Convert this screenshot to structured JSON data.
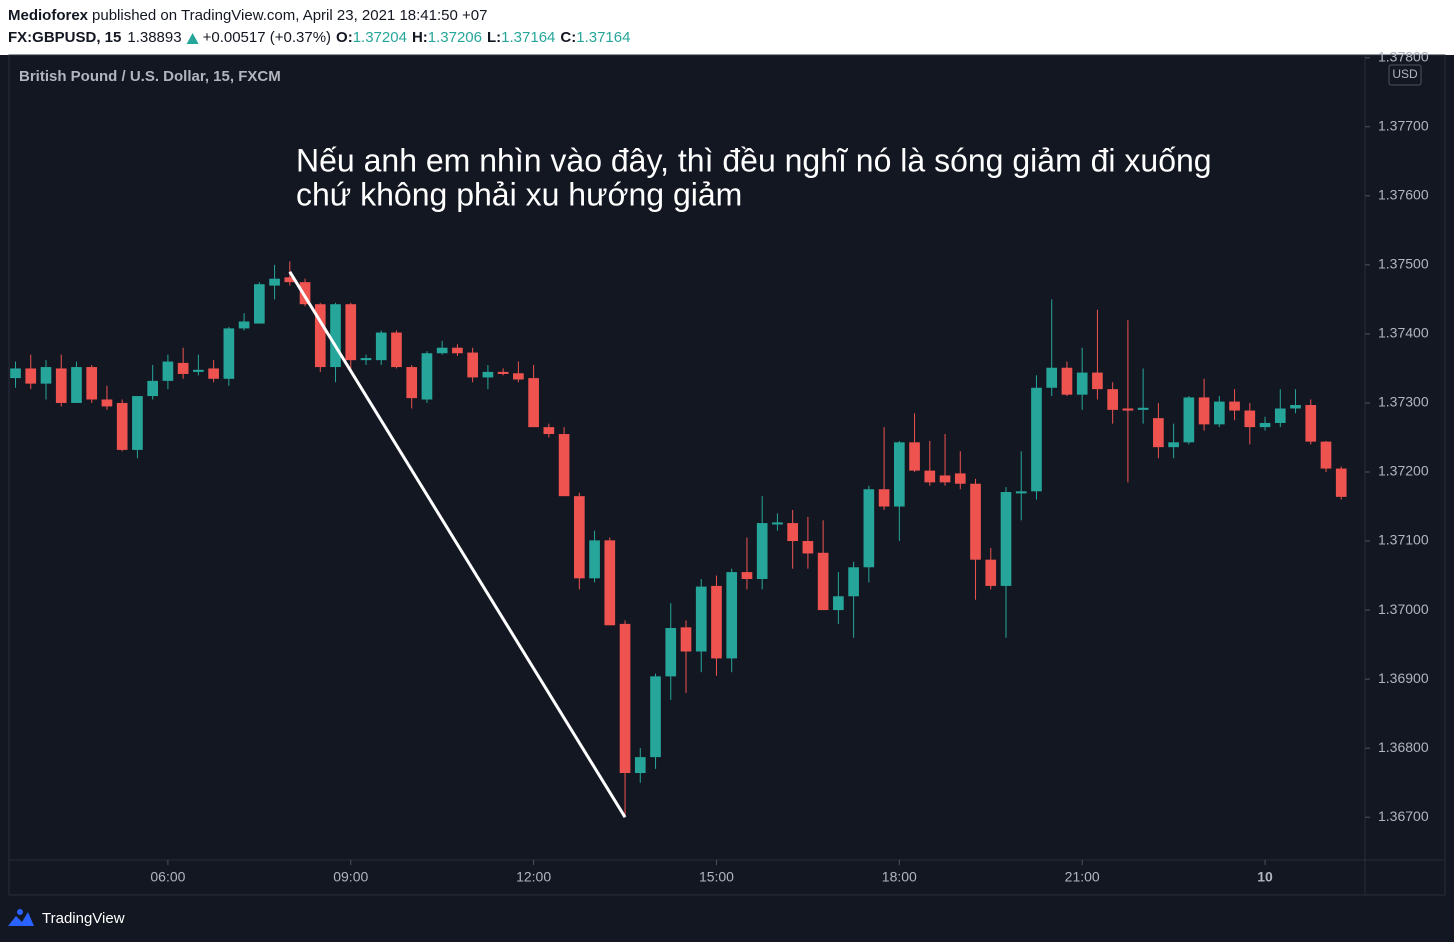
{
  "chart_data": {
    "type": "candlestick",
    "header": {
      "author": "Medioforex",
      "published": "published on TradingView.com, April 23, 2021 18:41:50 +07",
      "symbol": "FX:GBPUSD, 15",
      "last": "1.38893",
      "change": "+0.00517 (+0.37%)",
      "ohlc": [
        {
          "label": "O:",
          "value": "1.37204"
        },
        {
          "label": "H:",
          "value": "1.37206"
        },
        {
          "label": "L:",
          "value": "1.37164"
        },
        {
          "label": "C:",
          "value": "1.37164"
        }
      ]
    },
    "title": "British Pound / U.S. Dollar, 15, FXCM",
    "currency": "USD",
    "annotation": [
      "Nếu anh em nhìn vào đây, thì đều nghĩ nó là sóng giảm đi xuống",
      "chứ không phải xu hướng giảm"
    ],
    "brand": "TradingView",
    "up_color": "#26a69a",
    "down_color": "#ef5350",
    "x": [
      3.5,
      3.75,
      4,
      4.25,
      4.5,
      4.75,
      5,
      5.25,
      5.5,
      5.75,
      6,
      6.25,
      6.5,
      6.75,
      7,
      7.25,
      7.5,
      7.75,
      8,
      8.25,
      8.5,
      8.75,
      9,
      9.25,
      9.5,
      9.75,
      10,
      10.25,
      10.5,
      10.75,
      11,
      11.25,
      11.5,
      11.75,
      12,
      12.25,
      12.5,
      12.75,
      13,
      13.25,
      13.5,
      13.75,
      14,
      14.25,
      14.5,
      14.75,
      15,
      15.25,
      15.5,
      15.75,
      16,
      16.25,
      16.5,
      16.75,
      17,
      17.25,
      17.5,
      17.75,
      18,
      18.25,
      18.5,
      18.75,
      19,
      19.25,
      19.5,
      19.75,
      20,
      20.25,
      20.5,
      20.75,
      21,
      21.25,
      21.5,
      21.75,
      22,
      22.25,
      22.5,
      22.75,
      23,
      23.25,
      23.5,
      23.75,
      24,
      24.25,
      24.5,
      24.75,
      25,
      25.25
    ],
    "open": [
      1.37336,
      1.3735,
      1.37328,
      1.3735,
      1.373,
      1.37352,
      1.37305,
      1.373,
      1.37232,
      1.3731,
      1.37332,
      1.37358,
      1.37345,
      1.3735,
      1.37335,
      1.37408,
      1.37415,
      1.3747,
      1.37482,
      1.37475,
      1.37443,
      1.37352,
      1.37443,
      1.37362,
      1.37362,
      1.37402,
      1.37352,
      1.37305,
      1.37372,
      1.3738,
      1.37373,
      1.37337,
      1.37345,
      1.37343,
      1.37336,
      1.37265,
      1.37255,
      1.37165,
      1.37046,
      1.37101,
      1.3698,
      1.36764,
      1.36787,
      1.36904,
      1.36975,
      1.3694,
      1.37035,
      1.3693,
      1.37055,
      1.37045,
      1.37124,
      1.37126,
      1.371,
      1.37083,
      1.37,
      1.3702,
      1.37062,
      1.37175,
      1.3715,
      1.37243,
      1.37202,
      1.37195,
      1.37198,
      1.37183,
      1.37073,
      1.37035,
      1.37169,
      1.37172,
      1.37322,
      1.37351,
      1.37312,
      1.37344,
      1.3732,
      1.37292,
      1.3729,
      1.37278,
      1.37236,
      1.37243,
      1.37308,
      1.37269,
      1.37302,
      1.37289,
      1.37265,
      1.37271,
      1.37292,
      1.37297,
      1.37244,
      1.37205
    ],
    "high": [
      1.3736,
      1.3737,
      1.37362,
      1.3737,
      1.3736,
      1.37355,
      1.37325,
      1.37305,
      1.3731,
      1.37355,
      1.3737,
      1.3738,
      1.3737,
      1.37362,
      1.3741,
      1.3743,
      1.37475,
      1.375,
      1.37505,
      1.3748,
      1.37445,
      1.37445,
      1.37445,
      1.3737,
      1.37405,
      1.37405,
      1.37355,
      1.37375,
      1.3739,
      1.37385,
      1.3738,
      1.37355,
      1.3735,
      1.3736,
      1.37355,
      1.3727,
      1.37265,
      1.3717,
      1.37115,
      1.37105,
      1.36985,
      1.368,
      1.36908,
      1.3701,
      1.36985,
      1.37045,
      1.3705,
      1.3706,
      1.37105,
      1.37165,
      1.3714,
      1.37145,
      1.37135,
      1.3713,
      1.37055,
      1.3707,
      1.3718,
      1.37265,
      1.37245,
      1.37285,
      1.37245,
      1.37255,
      1.3723,
      1.3719,
      1.3709,
      1.37178,
      1.3723,
      1.3734,
      1.3745,
      1.3736,
      1.3738,
      1.37435,
      1.3733,
      1.3742,
      1.3735,
      1.373,
      1.3727,
      1.3731,
      1.37335,
      1.3731,
      1.3732,
      1.373,
      1.3728,
      1.3732,
      1.3732,
      1.37305,
      1.37245,
      1.37208
    ],
    "low": [
      1.37322,
      1.3732,
      1.37305,
      1.37295,
      1.373,
      1.373,
      1.3729,
      1.3723,
      1.3722,
      1.37305,
      1.3732,
      1.37335,
      1.3734,
      1.3733,
      1.37325,
      1.37405,
      1.37415,
      1.3745,
      1.3747,
      1.3744,
      1.37345,
      1.3733,
      1.37345,
      1.37355,
      1.37355,
      1.3735,
      1.37292,
      1.373,
      1.3737,
      1.37368,
      1.3733,
      1.3732,
      1.3734,
      1.3733,
      1.37265,
      1.3725,
      1.37165,
      1.3703,
      1.3704,
      1.36978,
      1.367,
      1.3675,
      1.3677,
      1.3687,
      1.3688,
      1.3691,
      1.36905,
      1.3691,
      1.3703,
      1.3703,
      1.37115,
      1.3706,
      1.3706,
      1.37,
      1.3698,
      1.3696,
      1.3704,
      1.37145,
      1.371,
      1.372,
      1.3718,
      1.3718,
      1.37175,
      1.37015,
      1.3703,
      1.3696,
      1.3713,
      1.3716,
      1.3731,
      1.3731,
      1.3729,
      1.37305,
      1.3727,
      1.37185,
      1.3727,
      1.3722,
      1.3722,
      1.3724,
      1.3726,
      1.37265,
      1.37275,
      1.3724,
      1.3726,
      1.37265,
      1.37285,
      1.3724,
      1.372,
      1.3716
    ],
    "close": [
      1.3735,
      1.37328,
      1.37352,
      1.373,
      1.37352,
      1.37305,
      1.37295,
      1.37232,
      1.3731,
      1.37332,
      1.3736,
      1.37342,
      1.37348,
      1.37335,
      1.37408,
      1.37418,
      1.37472,
      1.3748,
      1.37475,
      1.37443,
      1.37352,
      1.37443,
      1.37362,
      1.37365,
      1.37402,
      1.37352,
      1.37307,
      1.37372,
      1.3738,
      1.37372,
      1.37337,
      1.37345,
      1.37342,
      1.37334,
      1.37265,
      1.37255,
      1.37165,
      1.37046,
      1.37101,
      1.36978,
      1.36764,
      1.36787,
      1.36904,
      1.36974,
      1.3694,
      1.37034,
      1.3693,
      1.37055,
      1.37045,
      1.37126,
      1.37127,
      1.371,
      1.37082,
      1.37,
      1.3702,
      1.37062,
      1.37175,
      1.3715,
      1.37243,
      1.37202,
      1.37185,
      1.37185,
      1.37183,
      1.37073,
      1.37035,
      1.37171,
      1.37172,
      1.37322,
      1.37351,
      1.37312,
      1.37344,
      1.3732,
      1.3729,
      1.37289,
      1.37293,
      1.37236,
      1.37243,
      1.37308,
      1.37269,
      1.37302,
      1.37289,
      1.37265,
      1.37271,
      1.37292,
      1.37297,
      1.37244,
      1.37205,
      1.37164
    ],
    "trendline": {
      "color": "#ffffff",
      "x": [
        8,
        13.5
      ],
      "y": [
        1.3749,
        1.367
      ]
    },
    "xlim": [
      3.393,
      25.64
    ],
    "ylim": [
      1.36638,
      1.37804
    ],
    "xticks": [
      {
        "value": 6,
        "label": "06:00"
      },
      {
        "value": 9,
        "label": "09:00"
      },
      {
        "value": 12,
        "label": "12:00"
      },
      {
        "value": 15,
        "label": "15:00"
      },
      {
        "value": 18,
        "label": "18:00"
      },
      {
        "value": 21,
        "label": "21:00"
      },
      {
        "value": 24,
        "label": "10"
      }
    ],
    "yticks": [
      {
        "value": 1.367,
        "label": "1.36700"
      },
      {
        "value": 1.368,
        "label": "1.36800"
      },
      {
        "value": 1.369,
        "label": "1.36900"
      },
      {
        "value": 1.37,
        "label": "1.37000"
      },
      {
        "value": 1.371,
        "label": "1.37100"
      },
      {
        "value": 1.372,
        "label": "1.37200"
      },
      {
        "value": 1.373,
        "label": "1.37300"
      },
      {
        "value": 1.374,
        "label": "1.37400"
      },
      {
        "value": 1.375,
        "label": "1.37500"
      },
      {
        "value": 1.376,
        "label": "1.37600"
      },
      {
        "value": 1.377,
        "label": "1.37700"
      },
      {
        "value": 1.378,
        "label": "1.37800"
      }
    ]
  }
}
